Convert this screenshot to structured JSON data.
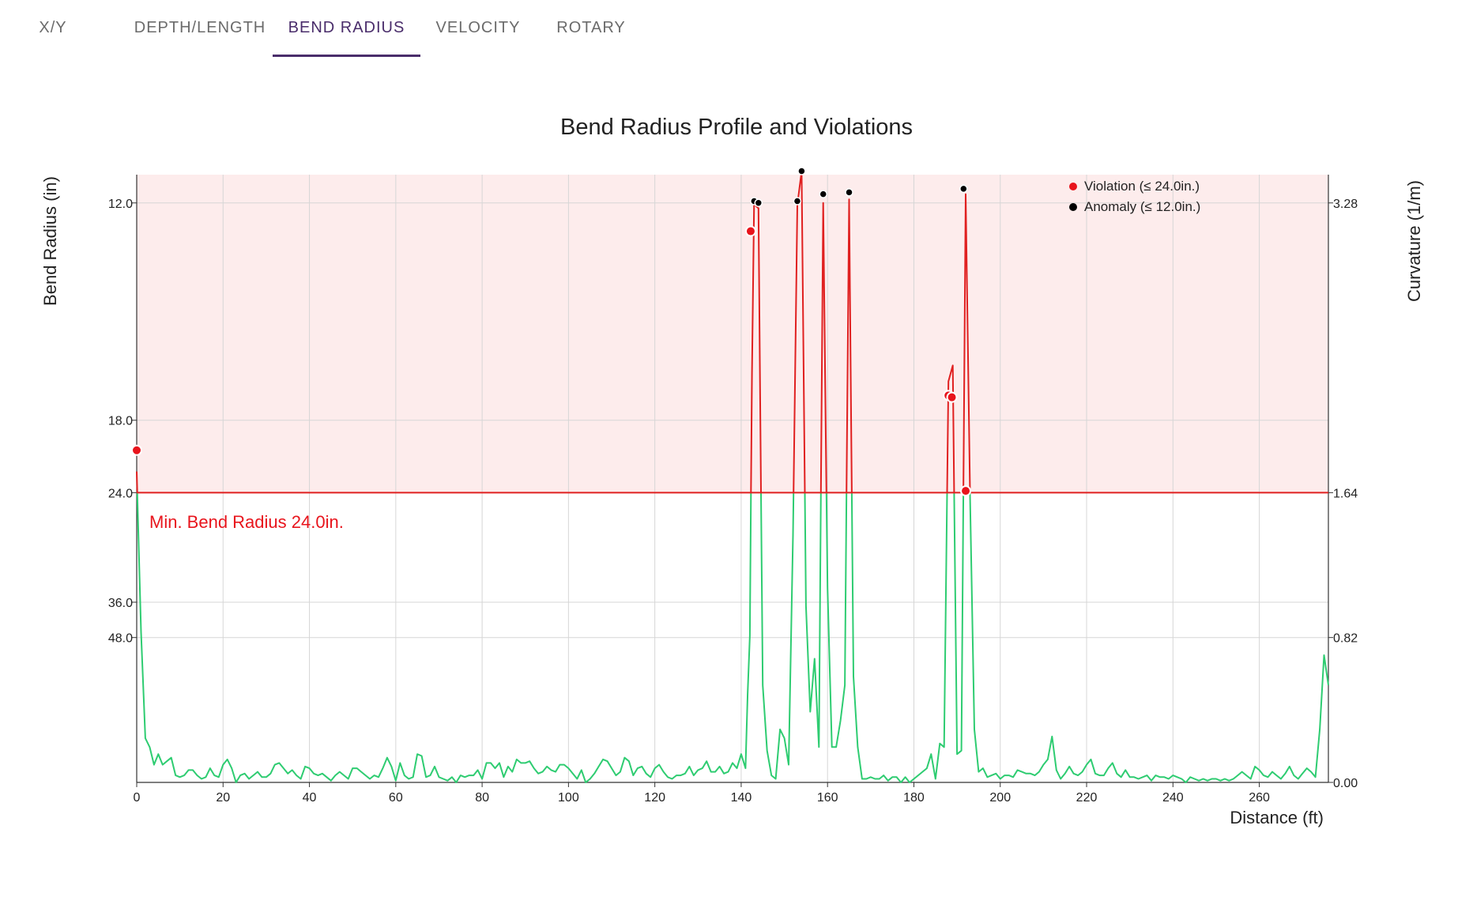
{
  "tabs": [
    {
      "label": "X/Y",
      "active": false
    },
    {
      "label": "DEPTH/LENGTH",
      "active": false
    },
    {
      "label": "BEND RADIUS",
      "active": true
    },
    {
      "label": "VELOCITY",
      "active": false
    },
    {
      "label": "ROTARY",
      "active": false
    }
  ],
  "colors": {
    "accent": "#4a2d6b",
    "violation": "#e8141c",
    "anomaly": "#000000",
    "profile_line": "#2ecc71",
    "violation_zone": "#fdecec",
    "limit_line": "#e02020"
  },
  "chart_data": {
    "type": "line",
    "title": "Bend Radius Profile and Violations",
    "xlabel": "Distance (ft)",
    "ylabel_left": "Bend Radius (in)",
    "ylabel_right": "Curvature (1/m)",
    "xlim": [
      0,
      276
    ],
    "xticks": [
      0,
      20,
      40,
      60,
      80,
      100,
      120,
      140,
      160,
      180,
      200,
      220,
      240,
      260
    ],
    "ylim_curvature": [
      0,
      3.44
    ],
    "left_ticks": [
      {
        "label": "12.0",
        "curvature": 3.28
      },
      {
        "label": "18.0",
        "curvature": 2.05
      },
      {
        "label": "24.0",
        "curvature": 1.64
      },
      {
        "label": "36.0",
        "curvature": 1.02
      },
      {
        "label": "48.0",
        "curvature": 0.82
      }
    ],
    "right_ticks": [
      "0.00",
      "0.82",
      "1.64",
      "3.28"
    ],
    "min_bend_label": "Min. Bend Radius 24.0in.",
    "min_bend_curvature": 1.64,
    "grid": true,
    "legend_position": "top-right",
    "legend": [
      {
        "label": "Violation (≤ 24.0in.)",
        "color": "#e8141c"
      },
      {
        "label": "Anomaly (≤ 12.0in.)",
        "color": "#000000"
      }
    ],
    "series": [
      {
        "name": "Curvature",
        "points": [
          [
            0,
            1.76
          ],
          [
            1,
            0.85
          ],
          [
            2,
            0.25
          ],
          [
            3,
            0.2
          ],
          [
            4,
            0.1
          ],
          [
            5,
            0.16
          ],
          [
            6,
            0.1
          ],
          [
            7,
            0.12
          ],
          [
            8,
            0.14
          ],
          [
            9,
            0.04
          ],
          [
            10,
            0.03
          ],
          [
            11,
            0.04
          ],
          [
            12,
            0.07
          ],
          [
            13,
            0.07
          ],
          [
            14,
            0.04
          ],
          [
            15,
            0.02
          ],
          [
            16,
            0.03
          ],
          [
            17,
            0.08
          ],
          [
            18,
            0.04
          ],
          [
            19,
            0.03
          ],
          [
            20,
            0.1
          ],
          [
            21,
            0.13
          ],
          [
            22,
            0.08
          ],
          [
            23,
            0.0
          ],
          [
            24,
            0.04
          ],
          [
            25,
            0.05
          ],
          [
            26,
            0.02
          ],
          [
            27,
            0.04
          ],
          [
            28,
            0.06
          ],
          [
            29,
            0.03
          ],
          [
            30,
            0.03
          ],
          [
            31,
            0.05
          ],
          [
            32,
            0.1
          ],
          [
            33,
            0.11
          ],
          [
            34,
            0.08
          ],
          [
            35,
            0.05
          ],
          [
            36,
            0.07
          ],
          [
            37,
            0.04
          ],
          [
            38,
            0.02
          ],
          [
            39,
            0.09
          ],
          [
            40,
            0.08
          ],
          [
            41,
            0.05
          ],
          [
            42,
            0.04
          ],
          [
            43,
            0.05
          ],
          [
            44,
            0.03
          ],
          [
            45,
            0.01
          ],
          [
            46,
            0.04
          ],
          [
            47,
            0.06
          ],
          [
            48,
            0.04
          ],
          [
            49,
            0.02
          ],
          [
            50,
            0.08
          ],
          [
            51,
            0.08
          ],
          [
            52,
            0.06
          ],
          [
            53,
            0.04
          ],
          [
            54,
            0.02
          ],
          [
            55,
            0.04
          ],
          [
            56,
            0.03
          ],
          [
            57,
            0.08
          ],
          [
            58,
            0.14
          ],
          [
            59,
            0.09
          ],
          [
            60,
            0.01
          ],
          [
            61,
            0.11
          ],
          [
            62,
            0.04
          ],
          [
            63,
            0.02
          ],
          [
            64,
            0.03
          ],
          [
            65,
            0.16
          ],
          [
            66,
            0.15
          ],
          [
            67,
            0.03
          ],
          [
            68,
            0.04
          ],
          [
            69,
            0.09
          ],
          [
            70,
            0.03
          ],
          [
            71,
            0.02
          ],
          [
            72,
            0.01
          ],
          [
            73,
            0.03
          ],
          [
            74,
            0.0
          ],
          [
            75,
            0.04
          ],
          [
            76,
            0.03
          ],
          [
            77,
            0.04
          ],
          [
            78,
            0.04
          ],
          [
            79,
            0.07
          ],
          [
            80,
            0.02
          ],
          [
            81,
            0.11
          ],
          [
            82,
            0.11
          ],
          [
            83,
            0.08
          ],
          [
            84,
            0.11
          ],
          [
            85,
            0.03
          ],
          [
            86,
            0.09
          ],
          [
            87,
            0.06
          ],
          [
            88,
            0.13
          ],
          [
            89,
            0.11
          ],
          [
            90,
            0.11
          ],
          [
            91,
            0.12
          ],
          [
            92,
            0.08
          ],
          [
            93,
            0.05
          ],
          [
            94,
            0.06
          ],
          [
            95,
            0.09
          ],
          [
            96,
            0.07
          ],
          [
            97,
            0.06
          ],
          [
            98,
            0.1
          ],
          [
            99,
            0.1
          ],
          [
            100,
            0.08
          ],
          [
            101,
            0.05
          ],
          [
            102,
            0.02
          ],
          [
            103,
            0.07
          ],
          [
            104,
            0.0
          ],
          [
            105,
            0.02
          ],
          [
            106,
            0.05
          ],
          [
            107,
            0.09
          ],
          [
            108,
            0.13
          ],
          [
            109,
            0.12
          ],
          [
            110,
            0.08
          ],
          [
            111,
            0.04
          ],
          [
            112,
            0.06
          ],
          [
            113,
            0.14
          ],
          [
            114,
            0.12
          ],
          [
            115,
            0.04
          ],
          [
            116,
            0.08
          ],
          [
            117,
            0.09
          ],
          [
            118,
            0.05
          ],
          [
            119,
            0.03
          ],
          [
            120,
            0.08
          ],
          [
            121,
            0.1
          ],
          [
            122,
            0.06
          ],
          [
            123,
            0.03
          ],
          [
            124,
            0.02
          ],
          [
            125,
            0.04
          ],
          [
            126,
            0.04
          ],
          [
            127,
            0.05
          ],
          [
            128,
            0.09
          ],
          [
            129,
            0.04
          ],
          [
            130,
            0.07
          ],
          [
            131,
            0.08
          ],
          [
            132,
            0.12
          ],
          [
            133,
            0.06
          ],
          [
            134,
            0.06
          ],
          [
            135,
            0.09
          ],
          [
            136,
            0.05
          ],
          [
            137,
            0.06
          ],
          [
            138,
            0.11
          ],
          [
            139,
            0.08
          ],
          [
            140,
            0.16
          ],
          [
            141,
            0.08
          ],
          [
            141.5,
            0.5
          ],
          [
            142,
            0.83
          ],
          [
            142.5,
            2.32
          ],
          [
            143,
            3.29
          ],
          [
            143.5,
            3.26
          ],
          [
            144,
            3.25
          ],
          [
            145,
            0.55
          ],
          [
            146,
            0.18
          ],
          [
            147,
            0.04
          ],
          [
            148,
            0.02
          ],
          [
            149,
            0.3
          ],
          [
            150,
            0.25
          ],
          [
            151,
            0.1
          ],
          [
            152,
            1.4
          ],
          [
            153,
            3.27
          ],
          [
            154,
            3.46
          ],
          [
            155,
            1.0
          ],
          [
            156,
            0.4
          ],
          [
            157,
            0.7
          ],
          [
            158,
            0.2
          ],
          [
            159,
            3.28
          ],
          [
            160,
            1.1
          ],
          [
            161,
            0.2
          ],
          [
            162,
            0.2
          ],
          [
            163,
            0.35
          ],
          [
            164,
            0.55
          ],
          [
            165,
            3.3
          ],
          [
            166,
            0.6
          ],
          [
            167,
            0.2
          ],
          [
            168,
            0.02
          ],
          [
            169,
            0.02
          ],
          [
            170,
            0.03
          ],
          [
            171,
            0.02
          ],
          [
            172,
            0.02
          ],
          [
            173,
            0.04
          ],
          [
            174,
            0.01
          ],
          [
            175,
            0.03
          ],
          [
            176,
            0.03
          ],
          [
            177,
            0.0
          ],
          [
            178,
            0.03
          ],
          [
            179,
            0.0
          ],
          [
            180,
            0.02
          ],
          [
            181,
            0.04
          ],
          [
            182,
            0.06
          ],
          [
            183,
            0.08
          ],
          [
            184,
            0.16
          ],
          [
            185,
            0.02
          ],
          [
            186,
            0.22
          ],
          [
            187,
            0.2
          ],
          [
            188,
            2.27
          ],
          [
            189,
            2.36
          ],
          [
            190,
            0.16
          ],
          [
            191,
            0.18
          ],
          [
            192,
            3.33
          ],
          [
            193,
            1.63
          ],
          [
            194,
            0.3
          ],
          [
            195,
            0.06
          ],
          [
            196,
            0.08
          ],
          [
            197,
            0.03
          ],
          [
            198,
            0.04
          ],
          [
            199,
            0.05
          ],
          [
            200,
            0.02
          ],
          [
            201,
            0.04
          ],
          [
            202,
            0.04
          ],
          [
            203,
            0.03
          ],
          [
            204,
            0.07
          ],
          [
            205,
            0.06
          ],
          [
            206,
            0.05
          ],
          [
            207,
            0.05
          ],
          [
            208,
            0.04
          ],
          [
            209,
            0.06
          ],
          [
            210,
            0.1
          ],
          [
            211,
            0.13
          ],
          [
            212,
            0.26
          ],
          [
            213,
            0.07
          ],
          [
            214,
            0.02
          ],
          [
            215,
            0.05
          ],
          [
            216,
            0.09
          ],
          [
            217,
            0.05
          ],
          [
            218,
            0.04
          ],
          [
            219,
            0.06
          ],
          [
            220,
            0.1
          ],
          [
            221,
            0.13
          ],
          [
            222,
            0.05
          ],
          [
            223,
            0.04
          ],
          [
            224,
            0.04
          ],
          [
            225,
            0.08
          ],
          [
            226,
            0.11
          ],
          [
            227,
            0.05
          ],
          [
            228,
            0.03
          ],
          [
            229,
            0.07
          ],
          [
            230,
            0.03
          ],
          [
            231,
            0.03
          ],
          [
            232,
            0.02
          ],
          [
            233,
            0.03
          ],
          [
            234,
            0.04
          ],
          [
            235,
            0.01
          ],
          [
            236,
            0.04
          ],
          [
            237,
            0.03
          ],
          [
            238,
            0.03
          ],
          [
            239,
            0.02
          ],
          [
            240,
            0.04
          ],
          [
            241,
            0.03
          ],
          [
            242,
            0.02
          ],
          [
            243,
            0.0
          ],
          [
            244,
            0.03
          ],
          [
            245,
            0.02
          ],
          [
            246,
            0.01
          ],
          [
            247,
            0.02
          ],
          [
            248,
            0.01
          ],
          [
            249,
            0.02
          ],
          [
            250,
            0.02
          ],
          [
            251,
            0.01
          ],
          [
            252,
            0.02
          ],
          [
            253,
            0.01
          ],
          [
            254,
            0.02
          ],
          [
            255,
            0.04
          ],
          [
            256,
            0.06
          ],
          [
            257,
            0.04
          ],
          [
            258,
            0.02
          ],
          [
            259,
            0.09
          ],
          [
            260,
            0.07
          ],
          [
            261,
            0.04
          ],
          [
            262,
            0.03
          ],
          [
            263,
            0.06
          ],
          [
            264,
            0.04
          ],
          [
            265,
            0.02
          ],
          [
            266,
            0.05
          ],
          [
            267,
            0.09
          ],
          [
            268,
            0.04
          ],
          [
            269,
            0.02
          ],
          [
            270,
            0.05
          ],
          [
            271,
            0.08
          ],
          [
            272,
            0.06
          ],
          [
            273,
            0.03
          ],
          [
            274,
            0.3
          ],
          [
            275,
            0.72
          ],
          [
            276,
            0.55
          ]
        ]
      }
    ],
    "violations": [
      [
        0,
        1.88
      ],
      [
        142.2,
        3.12
      ],
      [
        188,
        2.19
      ],
      [
        188.8,
        2.18
      ],
      [
        192,
        1.65
      ]
    ],
    "anomalies": [
      [
        143,
        3.29
      ],
      [
        144,
        3.28
      ],
      [
        153,
        3.29
      ],
      [
        154,
        3.46
      ],
      [
        159,
        3.33
      ],
      [
        165,
        3.34
      ],
      [
        191.5,
        3.36
      ]
    ]
  }
}
